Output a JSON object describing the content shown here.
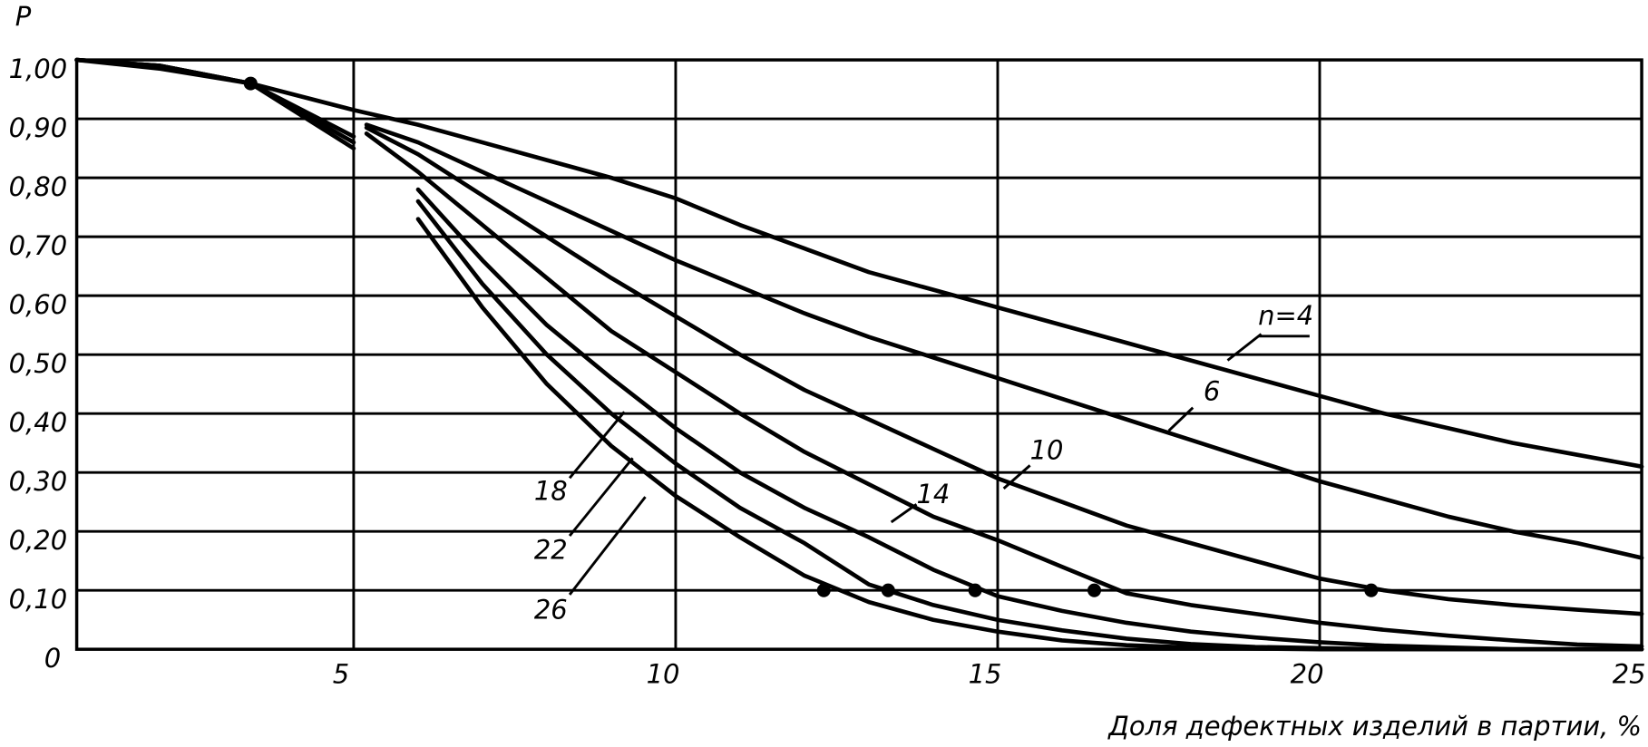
{
  "chart_data": {
    "type": "line",
    "y_label": "P",
    "x_label": "Доля дефектных изделий в партии, %",
    "xlim": [
      0.7,
      25
    ],
    "ylim": [
      0,
      1.0
    ],
    "xticks": [
      5,
      10,
      15,
      20,
      25
    ],
    "yticks": [
      0,
      {
        "value": 0.1,
        "label": "0,10"
      },
      {
        "value": 0.2,
        "label": "0,20"
      },
      {
        "value": 0.3,
        "label": "0,30"
      },
      {
        "value": 0.4,
        "label": "0,40"
      },
      {
        "value": 0.5,
        "label": "0,50"
      },
      {
        "value": 0.6,
        "label": "0,60"
      },
      {
        "value": 0.7,
        "label": "0,70"
      },
      {
        "value": 0.8,
        "label": "0,80"
      },
      {
        "value": 0.9,
        "label": "0,90"
      },
      {
        "value": 1.0,
        "label": "1,00"
      }
    ],
    "grid": true,
    "color": "#000000",
    "x": [
      0.7,
      2,
      3.4,
      5,
      5.2,
      6,
      7,
      8,
      9,
      10,
      11,
      12,
      13,
      14,
      15,
      16,
      17,
      18,
      19,
      20,
      21,
      22,
      23,
      24,
      25
    ],
    "series": [
      {
        "name": "n=4",
        "values": [
          1.0,
          0.985,
          0.96,
          0.915,
          0.91,
          0.89,
          0.86,
          0.83,
          0.8,
          0.765,
          0.72,
          0.68,
          0.64,
          0.61,
          0.58,
          0.55,
          0.52,
          0.49,
          0.46,
          0.43,
          0.4,
          0.375,
          0.35,
          0.33,
          0.31
        ]
      },
      {
        "name": "6",
        "values": [
          null,
          null,
          null,
          null,
          0.89,
          0.86,
          0.81,
          0.76,
          0.71,
          0.66,
          0.615,
          0.57,
          0.53,
          0.495,
          0.46,
          0.425,
          0.39,
          0.355,
          0.32,
          0.285,
          0.255,
          0.225,
          0.2,
          0.18,
          0.155
        ]
      },
      {
        "name": "10",
        "values": [
          null,
          null,
          null,
          null,
          0.885,
          0.84,
          0.77,
          0.7,
          0.63,
          0.565,
          0.5,
          0.44,
          0.39,
          0.34,
          0.29,
          0.25,
          0.21,
          0.18,
          0.15,
          0.12,
          0.1,
          0.085,
          0.075,
          0.067,
          0.06
        ]
      },
      {
        "name": "14",
        "values": [
          null,
          null,
          null,
          null,
          0.875,
          0.81,
          0.72,
          0.63,
          0.54,
          0.47,
          0.4,
          0.335,
          0.28,
          0.225,
          0.185,
          0.14,
          0.095,
          0.075,
          0.06,
          0.045,
          0.033,
          0.023,
          0.015,
          0.008,
          0.005
        ]
      },
      {
        "name": "18",
        "values": [
          1.0,
          0.99,
          0.96,
          0.87,
          null,
          0.78,
          0.66,
          0.55,
          0.46,
          0.375,
          0.3,
          0.24,
          0.19,
          0.135,
          0.09,
          0.065,
          0.045,
          0.03,
          0.02,
          0.012,
          0.006,
          0.003,
          0,
          0,
          0
        ]
      },
      {
        "name": "22",
        "values": [
          1.0,
          0.99,
          0.96,
          0.86,
          null,
          0.76,
          0.62,
          0.5,
          0.4,
          0.315,
          0.24,
          0.18,
          0.11,
          0.075,
          0.05,
          0.032,
          0.018,
          0.009,
          0.004,
          0.002,
          0,
          0,
          0,
          0,
          0
        ]
      },
      {
        "name": "26",
        "values": [
          1.0,
          0.99,
          0.96,
          0.85,
          null,
          0.73,
          0.58,
          0.45,
          0.345,
          0.26,
          0.19,
          0.125,
          0.08,
          0.05,
          0.03,
          0.015,
          0.007,
          0.003,
          0.001,
          0,
          0,
          0,
          0,
          0,
          0
        ]
      }
    ],
    "markers": {
      "x": [
        3.4,
        12.3,
        13.3,
        14.65,
        16.5,
        20.8
      ],
      "values": [
        0.96,
        0.1,
        0.1,
        0.1,
        0.1,
        0.1
      ]
    }
  }
}
